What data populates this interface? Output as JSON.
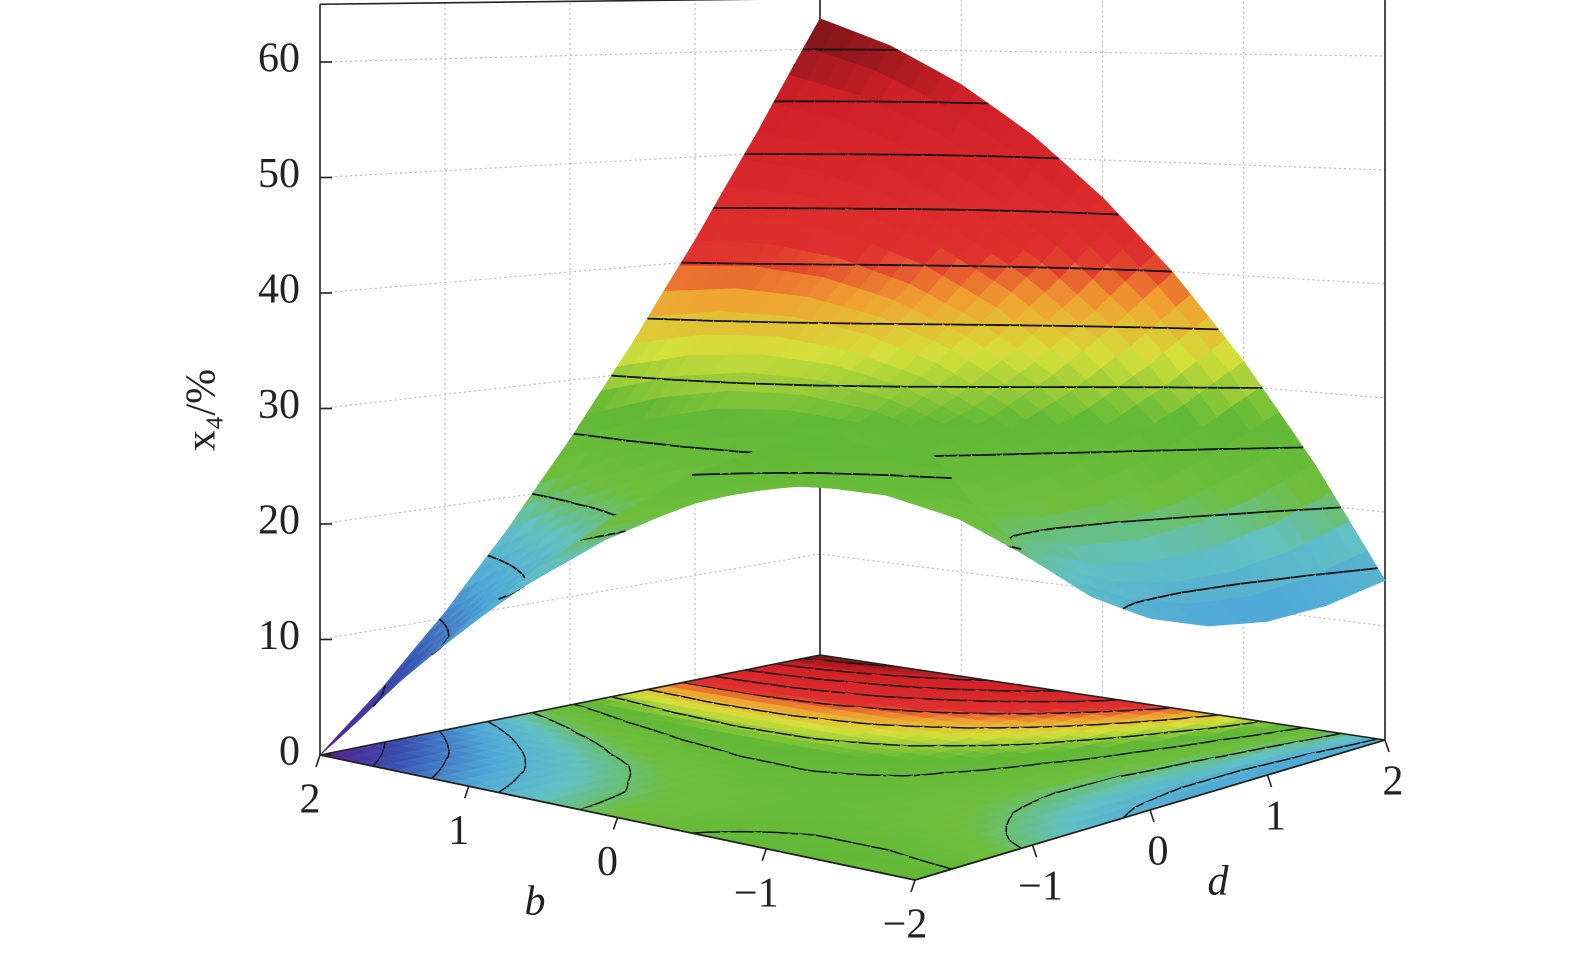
{
  "chart_data": {
    "type": "surface",
    "x_label": "b",
    "y_label": "d",
    "z_label": "x₄/%",
    "b": [
      -2,
      -1.5,
      -1,
      -0.5,
      0,
      0.5,
      1,
      1.5,
      2
    ],
    "d": [
      -2,
      -1.5,
      -1,
      -0.5,
      0,
      0.5,
      1,
      1.5,
      2
    ],
    "z": [
      [
        28,
        23.19,
        19.25,
        16.19,
        14,
        12.69,
        12.25,
        12.69,
        14
      ],
      [
        28,
        24.39,
        21.66,
        19.8,
        18.81,
        18.7,
        19.47,
        21.11,
        23.63
      ],
      [
        27,
        24.59,
        23.06,
        22.41,
        22.63,
        23.72,
        25.69,
        28.53,
        32.25
      ],
      [
        25,
        23.8,
        23.47,
        24.02,
        25.44,
        27.73,
        30.91,
        34.95,
        39.88
      ],
      [
        22,
        22,
        22.88,
        24.63,
        27.25,
        30.75,
        35.13,
        40.38,
        46.5
      ],
      [
        18,
        19.2,
        21.28,
        24.23,
        28.06,
        32.77,
        38.34,
        44.8,
        52.13
      ],
      [
        13,
        15.41,
        18.69,
        22.84,
        27.88,
        33.78,
        40.56,
        48.22,
        56.75
      ],
      [
        7,
        10.61,
        15.09,
        20.45,
        26.69,
        33.8,
        41.78,
        50.64,
        60.38
      ],
      [
        0,
        4.81,
        10.5,
        17.06,
        24.5,
        32.81,
        42,
        52.06,
        63
      ]
    ],
    "blim": [
      -2,
      2
    ],
    "dlim": [
      -2,
      2
    ],
    "zlim": [
      0,
      65
    ],
    "bticks": [
      2,
      1,
      0,
      {
        "value": -1,
        "label": "−1"
      },
      {
        "value": -2,
        "label": "−2"
      }
    ],
    "dticks": [
      {
        "value": -1,
        "label": "−1"
      },
      0,
      1,
      2
    ],
    "zticks": [
      0,
      10,
      20,
      30,
      40,
      50,
      60
    ],
    "grid": true,
    "contours": true,
    "floor_projection": true
  }
}
